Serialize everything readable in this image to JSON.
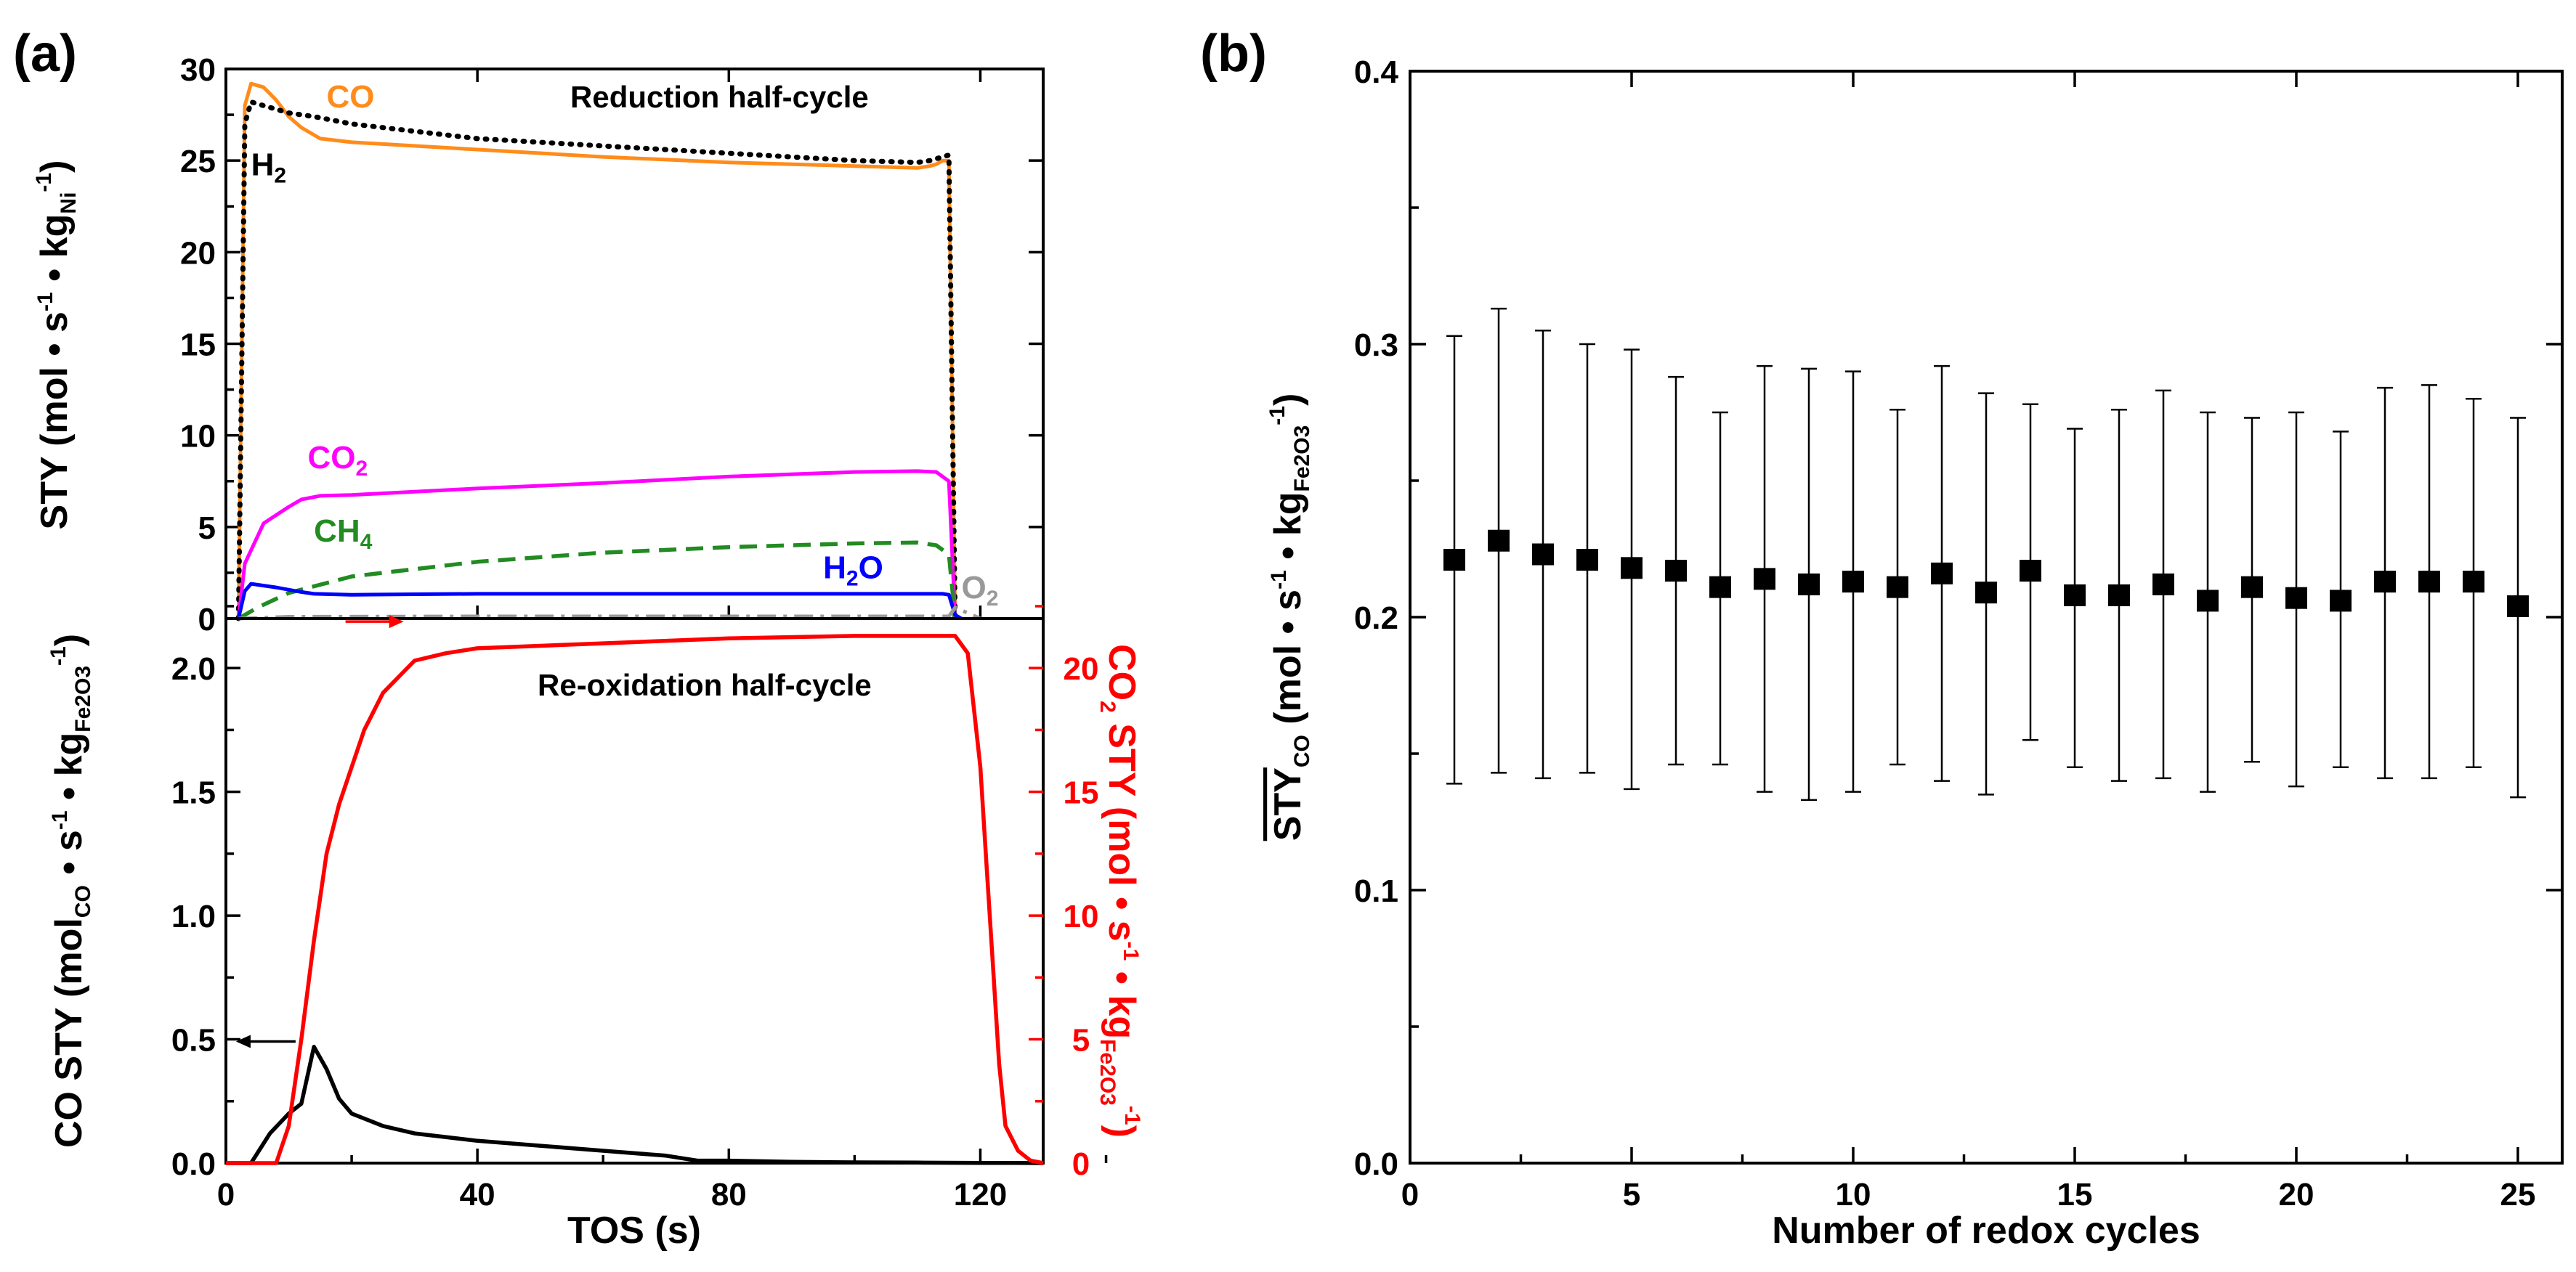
{
  "panels": {
    "a_label": "(a)",
    "b_label": "(b)"
  },
  "chart_data": [
    {
      "type": "line",
      "panel": "(a) top",
      "title": "Reduction half-cycle",
      "xlabel": "TOS (s)",
      "ylabel": "STY (mol • s⁻¹ • kg_Ni⁻¹)",
      "ylabel_parts": {
        "main": "STY (mol • s",
        "exp1": "-1",
        "mid": " • kg",
        "sub": "Ni",
        "exp2": "-1",
        "end": ")"
      },
      "xlim": [
        0,
        130
      ],
      "ylim": [
        0,
        30
      ],
      "yticks": [
        "0",
        "5",
        "10",
        "15",
        "20",
        "25",
        "30"
      ],
      "series": [
        {
          "name": "CO",
          "label_main": "CO",
          "label_sub": "",
          "color": "#ff8c1a",
          "style": "solid",
          "x": [
            2,
            3,
            4,
            6,
            8,
            10,
            12,
            15,
            20,
            40,
            60,
            80,
            100,
            110,
            112,
            113,
            114,
            115,
            116
          ],
          "y": [
            0,
            28.0,
            29.2,
            29.0,
            28.3,
            27.4,
            26.8,
            26.2,
            26.0,
            25.6,
            25.2,
            24.9,
            24.7,
            24.6,
            24.7,
            24.8,
            25.0,
            25.0,
            0
          ]
        },
        {
          "name": "H2",
          "label_main": "H",
          "label_sub": "2",
          "color": "#000000",
          "style": "dotted",
          "x": [
            2,
            3,
            4,
            6,
            8,
            10,
            14,
            20,
            40,
            60,
            80,
            100,
            110,
            112,
            114,
            115,
            116
          ],
          "y": [
            0,
            27.0,
            28.2,
            28.0,
            27.8,
            27.6,
            27.4,
            27.0,
            26.2,
            25.8,
            25.4,
            25.0,
            24.9,
            25.0,
            25.2,
            25.3,
            0
          ]
        },
        {
          "name": "CO2",
          "label_main": "CO",
          "label_sub": "2",
          "color": "#ff00ff",
          "style": "solid",
          "x": [
            2,
            3,
            6,
            10,
            12,
            15,
            20,
            40,
            60,
            80,
            100,
            110,
            113,
            115,
            116
          ],
          "y": [
            0,
            3.0,
            5.2,
            6.1,
            6.5,
            6.7,
            6.75,
            7.1,
            7.4,
            7.75,
            8.0,
            8.05,
            8.0,
            7.5,
            0
          ]
        },
        {
          "name": "CH4",
          "label_main": "CH",
          "label_sub": "4",
          "color": "#228b22",
          "style": "dashed",
          "x": [
            2,
            5,
            10,
            20,
            40,
            60,
            80,
            100,
            110,
            113,
            115,
            116
          ],
          "y": [
            0,
            0.6,
            1.4,
            2.3,
            3.1,
            3.6,
            3.9,
            4.1,
            4.15,
            4.0,
            3.5,
            0
          ]
        },
        {
          "name": "H2O",
          "label_main": "H",
          "label_sub": "2",
          "label_tail": "O",
          "color": "#0000ff",
          "style": "solid",
          "x": [
            2,
            3,
            4,
            8,
            12,
            14,
            20,
            40,
            60,
            80,
            100,
            110,
            114,
            115,
            116,
            117
          ],
          "y": [
            0,
            1.5,
            1.9,
            1.7,
            1.45,
            1.35,
            1.3,
            1.35,
            1.35,
            1.35,
            1.35,
            1.35,
            1.35,
            1.3,
            0.2,
            0
          ]
        },
        {
          "name": "O2",
          "label_main": "O",
          "label_sub": "2",
          "color": "#999999",
          "style": "dashdot",
          "x": [
            2,
            10,
            40,
            80,
            115,
            116,
            118,
            120
          ],
          "y": [
            0,
            0.1,
            0.12,
            0.12,
            0.12,
            0.6,
            0.3,
            0
          ]
        }
      ]
    },
    {
      "type": "line",
      "panel": "(a) bottom",
      "title": "Re-oxidation half-cycle",
      "xlabel": "TOS (s)",
      "xticks": [
        "0",
        "40",
        "80",
        "120"
      ],
      "xlim": [
        0,
        130
      ],
      "ylabel_left": "CO STY (mol_CO • s⁻¹ • kg_Fe2O3⁻¹)",
      "ylabel_left_parts": {
        "main": "CO STY (mol",
        "sub1": "CO",
        "mid1": " • s",
        "exp1": "-1",
        "mid2": " • kg",
        "sub2": "Fe2O3",
        "exp2": "-1",
        "end": ")"
      },
      "ylim_left": [
        0,
        2.2
      ],
      "yticks_left": [
        "0.0",
        "0.5",
        "1.0",
        "1.5",
        "2.0"
      ],
      "ylabel_right": "CO₂ STY (mol • s⁻¹ • kg_Fe2O3⁻¹)",
      "ylabel_right_parts": {
        "main": "CO",
        "sub0": "2",
        "mid0": " STY (mol • s",
        "exp1": "-1",
        "mid2": " • kg",
        "sub2": "Fe2O3",
        "exp2": "-1",
        "end": ")"
      },
      "ylim_right": [
        0,
        22
      ],
      "yticks_right": [
        "0",
        "5",
        "10",
        "15",
        "20"
      ],
      "series": [
        {
          "name": "CO",
          "axis": "left",
          "color": "#000000",
          "x": [
            0,
            4,
            7,
            10,
            12,
            14,
            16,
            18,
            20,
            25,
            30,
            40,
            50,
            60,
            70,
            75,
            80,
            90,
            100,
            110,
            120,
            125,
            130
          ],
          "y": [
            0,
            0,
            0.12,
            0.2,
            0.24,
            0.47,
            0.38,
            0.26,
            0.2,
            0.15,
            0.12,
            0.09,
            0.07,
            0.05,
            0.03,
            0.01,
            0.01,
            0.005,
            0.003,
            0.002,
            0.001,
            0.001,
            0.0
          ]
        },
        {
          "name": "CO2",
          "axis": "right",
          "color": "#ff0000",
          "x": [
            0,
            8,
            10,
            12,
            14,
            16,
            18,
            20,
            22,
            25,
            30,
            35,
            40,
            60,
            80,
            100,
            110,
            116,
            118,
            120,
            121,
            122,
            123,
            124,
            126,
            128,
            130
          ],
          "y": [
            0,
            0,
            1.5,
            5,
            9,
            12.5,
            14.5,
            16,
            17.5,
            19,
            20.3,
            20.6,
            20.8,
            21.0,
            21.2,
            21.3,
            21.3,
            21.3,
            20.6,
            16,
            12,
            8,
            4,
            1.5,
            0.5,
            0.1,
            0
          ]
        }
      ],
      "arrows": [
        {
          "series": "CO2",
          "direction": "right",
          "x": 30
        },
        {
          "series": "CO",
          "direction": "left",
          "x": 6
        }
      ]
    },
    {
      "type": "scatter",
      "panel": "(b)",
      "xlabel": "Number of redox cycles",
      "ylabel": "STY̅_CO (mol • s⁻¹ • kg_Fe2O3⁻¹)",
      "ylabel_parts": {
        "main": "STY",
        "sub1": "CO",
        "mid": " (mol • s",
        "exp1": "-1",
        "mid2": " • kg",
        "sub2": "Fe2O3",
        "exp2": "-1",
        "end": ")"
      },
      "xlim": [
        0,
        26
      ],
      "ylim": [
        0,
        0.4
      ],
      "xticks": [
        "0",
        "5",
        "10",
        "15",
        "20",
        "25"
      ],
      "yticks": [
        "0.0",
        "0.1",
        "0.2",
        "0.3",
        "0.4"
      ],
      "x": [
        1,
        2,
        3,
        4,
        5,
        6,
        7,
        8,
        9,
        10,
        11,
        12,
        13,
        14,
        15,
        16,
        17,
        18,
        19,
        20,
        21,
        22,
        23,
        24,
        25
      ],
      "y": [
        0.221,
        0.228,
        0.223,
        0.221,
        0.218,
        0.217,
        0.211,
        0.214,
        0.212,
        0.213,
        0.211,
        0.216,
        0.209,
        0.217,
        0.208,
        0.208,
        0.212,
        0.206,
        0.211,
        0.207,
        0.206,
        0.213,
        0.213,
        0.213,
        0.204
      ],
      "err_upper": [
        0.303,
        0.313,
        0.305,
        0.3,
        0.298,
        0.288,
        0.275,
        0.292,
        0.291,
        0.29,
        0.276,
        0.292,
        0.282,
        0.278,
        0.269,
        0.276,
        0.283,
        0.275,
        0.273,
        0.275,
        0.268,
        0.284,
        0.285,
        0.28,
        0.273
      ],
      "err_lower": [
        0.139,
        0.143,
        0.141,
        0.143,
        0.137,
        0.146,
        0.146,
        0.136,
        0.133,
        0.136,
        0.146,
        0.14,
        0.135,
        0.155,
        0.145,
        0.14,
        0.141,
        0.136,
        0.147,
        0.138,
        0.145,
        0.141,
        0.141,
        0.145,
        0.134
      ]
    }
  ]
}
